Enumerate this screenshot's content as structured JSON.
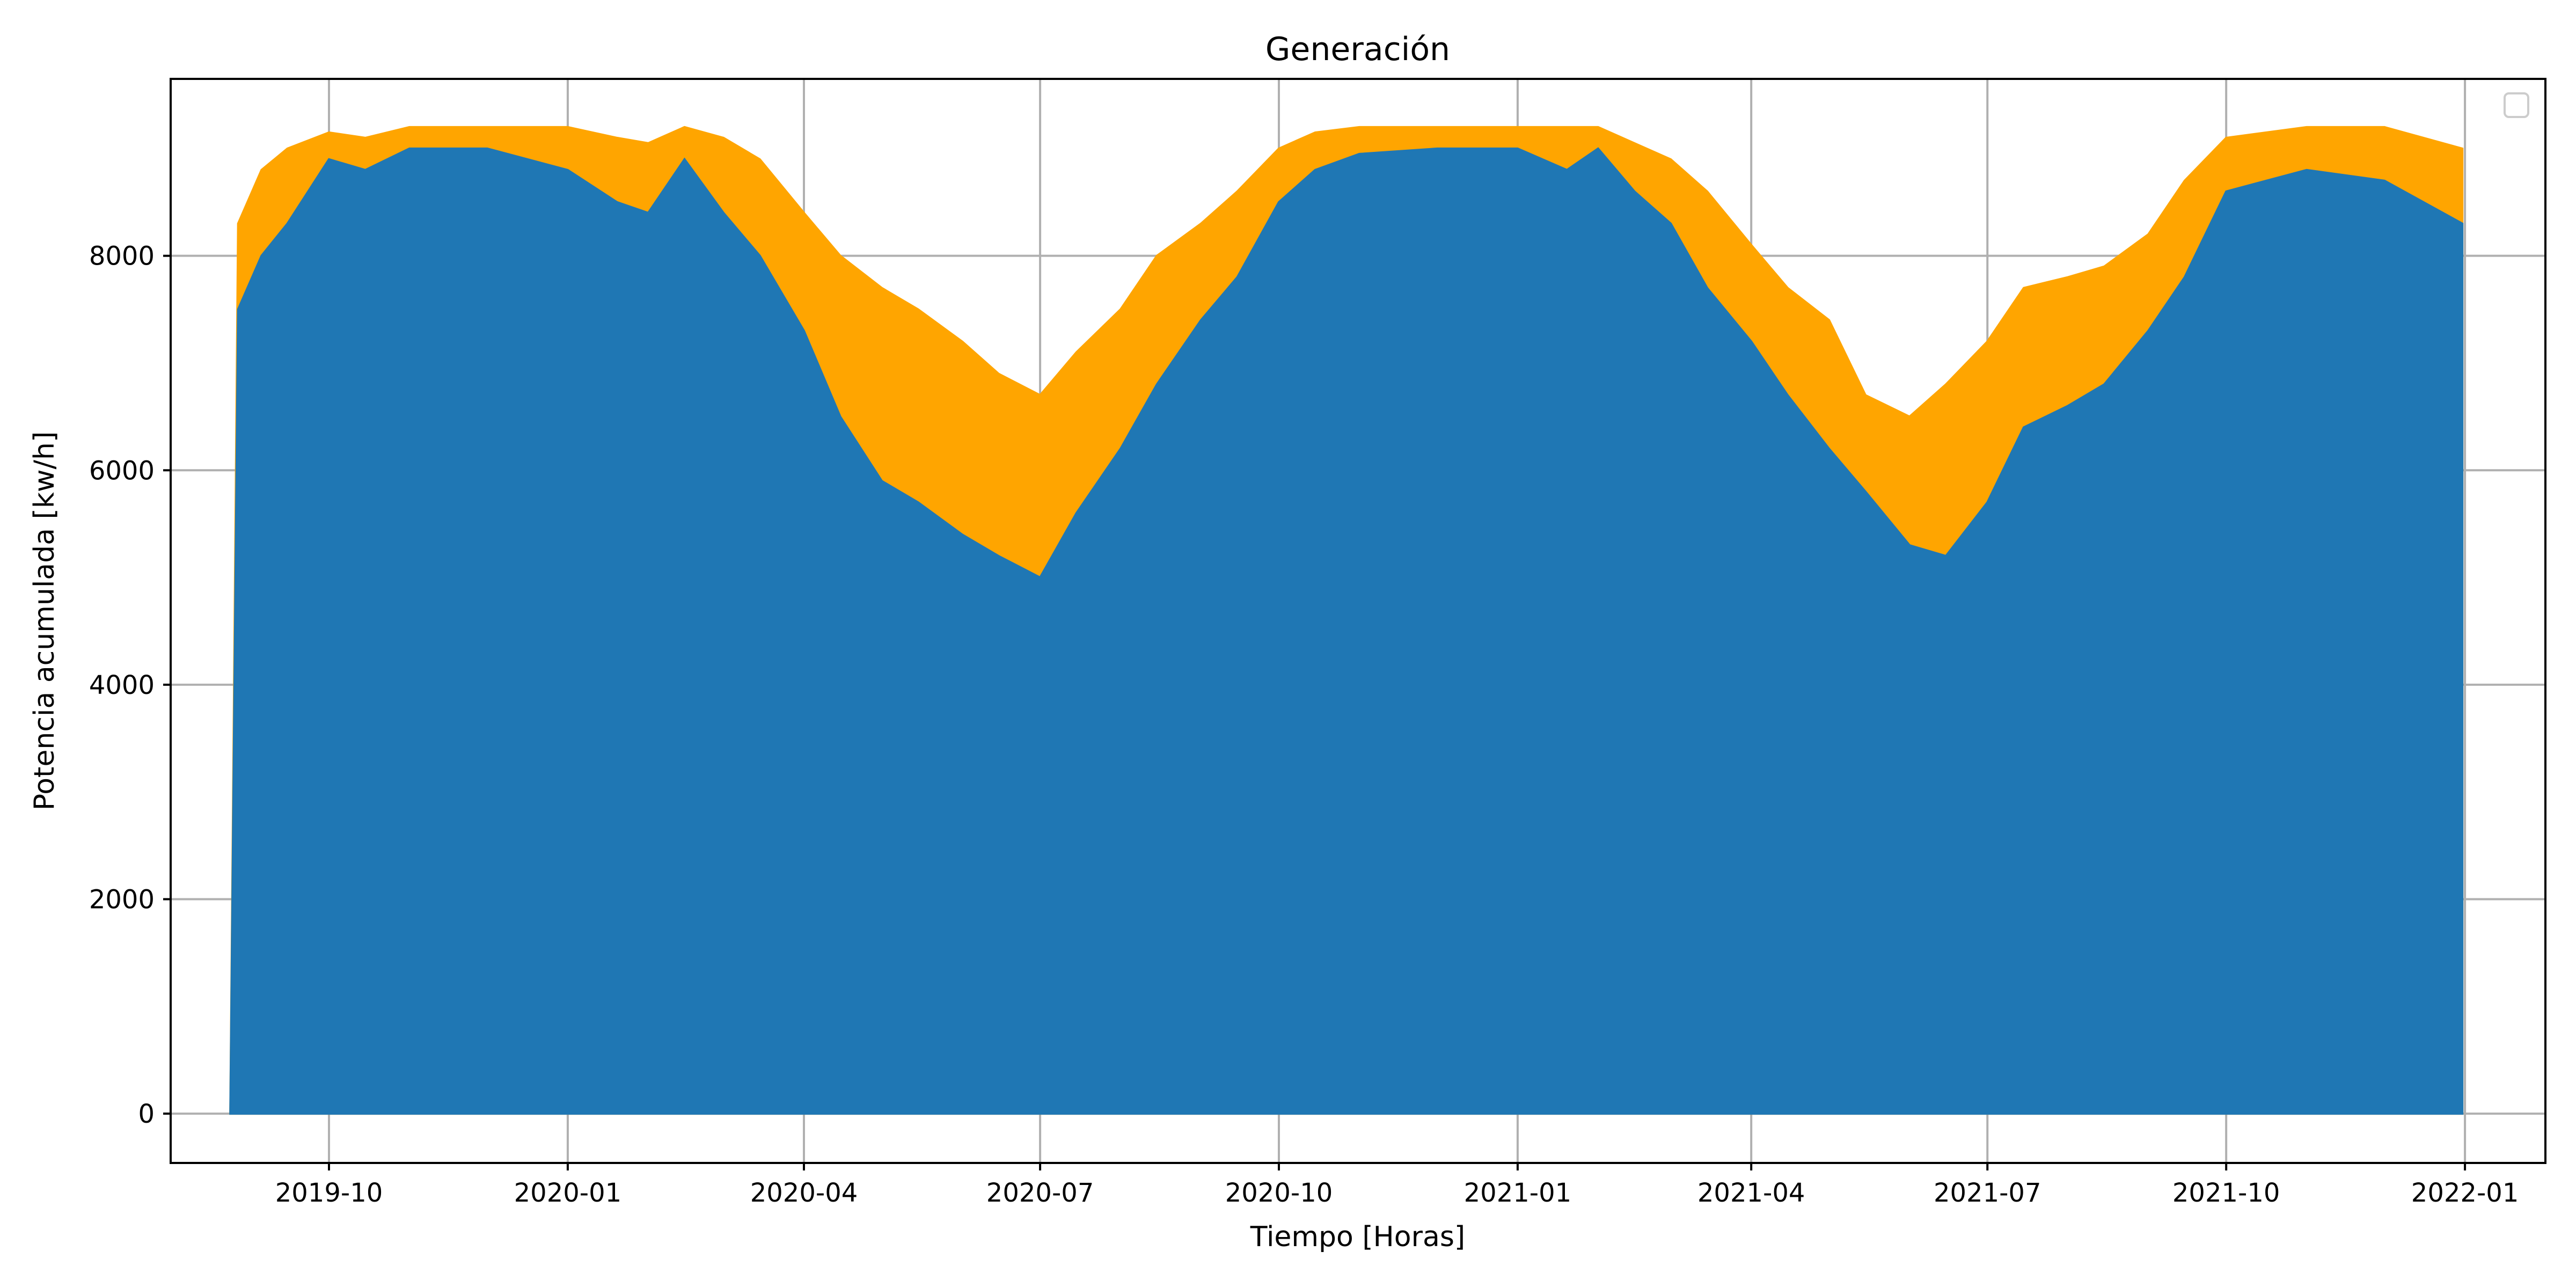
{
  "chart_data": {
    "type": "area",
    "title": "Generación",
    "xlabel": "Tiempo [Horas]",
    "ylabel": "Potencia acumulada [kw/h]",
    "x_range": [
      "2019-08-01",
      "2022-02-01"
    ],
    "ylim": [
      -460,
      9650
    ],
    "x_ticks": [
      "2019-10",
      "2020-01",
      "2020-04",
      "2020-07",
      "2020-10",
      "2021-01",
      "2021-04",
      "2021-07",
      "2021-10",
      "2022-01"
    ],
    "y_ticks": [
      0,
      2000,
      4000,
      6000,
      8000
    ],
    "grid": true,
    "legend": {
      "position": "top-right",
      "entries": []
    },
    "series": [
      {
        "color": "#ffa500",
        "x": [
          "2019-08-24",
          "2019-08-27",
          "2019-09-05",
          "2019-09-15",
          "2019-10-01",
          "2019-10-15",
          "2019-11-01",
          "2019-12-01",
          "2020-01-01",
          "2020-01-20",
          "2020-02-01",
          "2020-02-15",
          "2020-03-01",
          "2020-03-15",
          "2020-04-01",
          "2020-04-15",
          "2020-05-01",
          "2020-05-15",
          "2020-06-01",
          "2020-06-15",
          "2020-07-01",
          "2020-07-15",
          "2020-08-01",
          "2020-08-15",
          "2020-09-01",
          "2020-09-15",
          "2020-10-01",
          "2020-10-15",
          "2020-11-01",
          "2020-12-01",
          "2021-01-01",
          "2021-01-20",
          "2021-02-01",
          "2021-02-15",
          "2021-03-01",
          "2021-03-15",
          "2021-04-01",
          "2021-04-15",
          "2021-05-01",
          "2021-05-15",
          "2021-06-01",
          "2021-06-15",
          "2021-07-01",
          "2021-07-15",
          "2021-08-01",
          "2021-08-15",
          "2021-09-01",
          "2021-09-15",
          "2021-10-01",
          "2021-11-01",
          "2021-12-01",
          "2021-12-31"
        ],
        "y": [
          0,
          8300,
          8800,
          9000,
          9150,
          9100,
          9200,
          9200,
          9200,
          9100,
          9050,
          9200,
          9100,
          8900,
          8400,
          8000,
          7700,
          7500,
          7200,
          6900,
          6700,
          7100,
          7500,
          8000,
          8300,
          8600,
          9000,
          9150,
          9200,
          9200,
          9200,
          9200,
          9200,
          9050,
          8900,
          8600,
          8100,
          7700,
          7400,
          6700,
          6500,
          6800,
          7200,
          7700,
          7800,
          7900,
          8200,
          8700,
          9100,
          9200,
          9200,
          9000
        ]
      },
      {
        "color": "#1f77b4",
        "x": [
          "2019-08-24",
          "2019-08-27",
          "2019-09-05",
          "2019-09-15",
          "2019-10-01",
          "2019-10-15",
          "2019-11-01",
          "2019-12-01",
          "2020-01-01",
          "2020-01-20",
          "2020-02-01",
          "2020-02-15",
          "2020-03-01",
          "2020-03-15",
          "2020-04-01",
          "2020-04-15",
          "2020-05-01",
          "2020-05-15",
          "2020-06-01",
          "2020-06-15",
          "2020-07-01",
          "2020-07-15",
          "2020-08-01",
          "2020-08-15",
          "2020-09-01",
          "2020-09-15",
          "2020-10-01",
          "2020-10-15",
          "2020-11-01",
          "2020-12-01",
          "2021-01-01",
          "2021-01-20",
          "2021-02-01",
          "2021-02-15",
          "2021-03-01",
          "2021-03-15",
          "2021-04-01",
          "2021-04-15",
          "2021-05-01",
          "2021-05-15",
          "2021-06-01",
          "2021-06-15",
          "2021-07-01",
          "2021-07-15",
          "2021-08-01",
          "2021-08-15",
          "2021-09-01",
          "2021-09-15",
          "2021-10-01",
          "2021-11-01",
          "2021-12-01",
          "2021-12-31"
        ],
        "y": [
          0,
          7500,
          8000,
          8300,
          8900,
          8800,
          9000,
          9000,
          8800,
          8500,
          8400,
          8900,
          8400,
          8000,
          7300,
          6500,
          5900,
          5700,
          5400,
          5200,
          5000,
          5600,
          6200,
          6800,
          7400,
          7800,
          8500,
          8800,
          8950,
          9000,
          9000,
          8800,
          9000,
          8600,
          8300,
          7700,
          7200,
          6700,
          6200,
          5800,
          5300,
          5200,
          5700,
          6400,
          6600,
          6800,
          7300,
          7800,
          8600,
          8800,
          8700,
          8300
        ]
      }
    ]
  }
}
